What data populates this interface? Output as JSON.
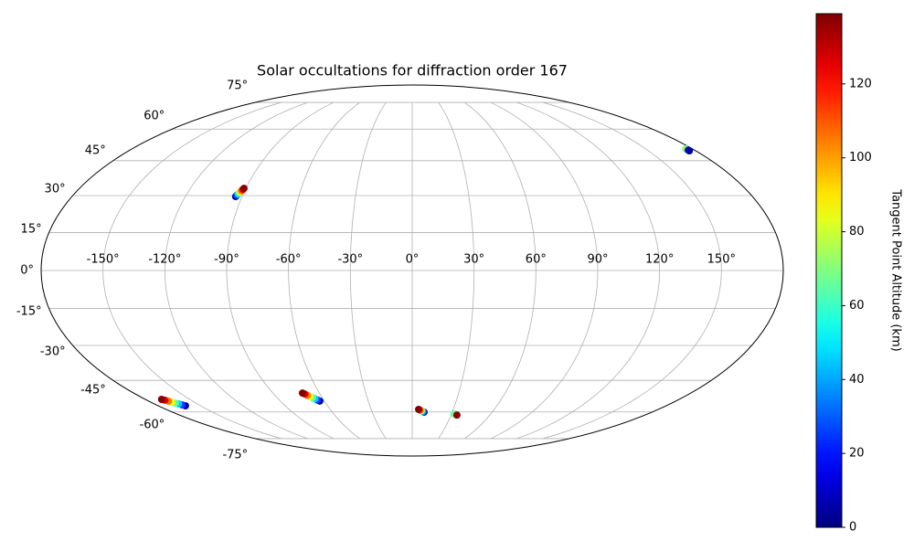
{
  "chart_data": {
    "type": "scatter",
    "projection": "mollweide",
    "title": "Solar occultations for diffraction order 167",
    "grid": true,
    "colormap": "jet",
    "colorbar_label": "Tangent Point Altitude (km)",
    "clim": [
      0,
      139
    ],
    "cticks": [
      0,
      20,
      40,
      60,
      80,
      100,
      120
    ],
    "xlim": [
      -180,
      180
    ],
    "ylim": [
      -90,
      90
    ],
    "xticks": [
      {
        "value": -150,
        "label": "-150°"
      },
      {
        "value": -120,
        "label": "-120°"
      },
      {
        "value": -90,
        "label": "-90°"
      },
      {
        "value": -60,
        "label": "-60°"
      },
      {
        "value": -30,
        "label": "-30°"
      },
      {
        "value": 0,
        "label": "0°"
      },
      {
        "value": 30,
        "label": "30°"
      },
      {
        "value": 60,
        "label": "60°"
      },
      {
        "value": 90,
        "label": "90°"
      },
      {
        "value": 120,
        "label": "120°"
      },
      {
        "value": 150,
        "label": "150°"
      }
    ],
    "yticks": [
      {
        "value": -75,
        "label": "-75°"
      },
      {
        "value": -60,
        "label": "-60°"
      },
      {
        "value": -45,
        "label": "-45°"
      },
      {
        "value": -30,
        "label": "-30°"
      },
      {
        "value": -15,
        "label": "-15°"
      },
      {
        "value": 0,
        "label": "0°"
      },
      {
        "value": 15,
        "label": "15°"
      },
      {
        "value": 30,
        "label": "30°"
      },
      {
        "value": 45,
        "label": "45°"
      },
      {
        "value": 60,
        "label": "60°"
      },
      {
        "value": 75,
        "label": "75°"
      }
    ],
    "x": [
      -93.4,
      -93.1,
      -92.7,
      -92.4,
      -92.0,
      -91.7,
      -91.3,
      -91.0,
      -160.7,
      -161.9,
      -163.1,
      -164.3,
      -165.4,
      -166.6,
      -167.8,
      -169.0,
      -63.1,
      -64.2,
      -65.3,
      -66.4,
      -67.6,
      -68.7,
      -69.8,
      -70.9,
      8.9,
      7.9,
      6.8,
      5.8,
      4.7,
      32.2,
      33.0,
      34.6,
      175.7,
      176.0,
      176.0
    ],
    "y": [
      29.6,
      30.1,
      30.6,
      31.1,
      31.5,
      32.0,
      32.5,
      33.0,
      -56.9,
      -56.5,
      -56.0,
      -55.6,
      -55.1,
      -54.7,
      -54.2,
      -53.8,
      -54.6,
      -54.1,
      -53.5,
      -53.0,
      -52.4,
      -51.9,
      -51.3,
      -50.8,
      -60.1,
      -59.8,
      -59.4,
      -59.1,
      -58.7,
      -61.1,
      -61.3,
      -61.6,
      50.4,
      49.8,
      49.5
    ],
    "color_values": [
      5,
      25,
      45,
      65,
      85,
      105,
      125,
      138,
      5,
      25,
      45,
      65,
      85,
      105,
      125,
      138,
      5,
      25,
      45,
      65,
      85,
      105,
      125,
      138,
      5,
      40,
      75,
      110,
      138,
      55,
      70,
      138,
      70,
      15,
      5
    ]
  }
}
